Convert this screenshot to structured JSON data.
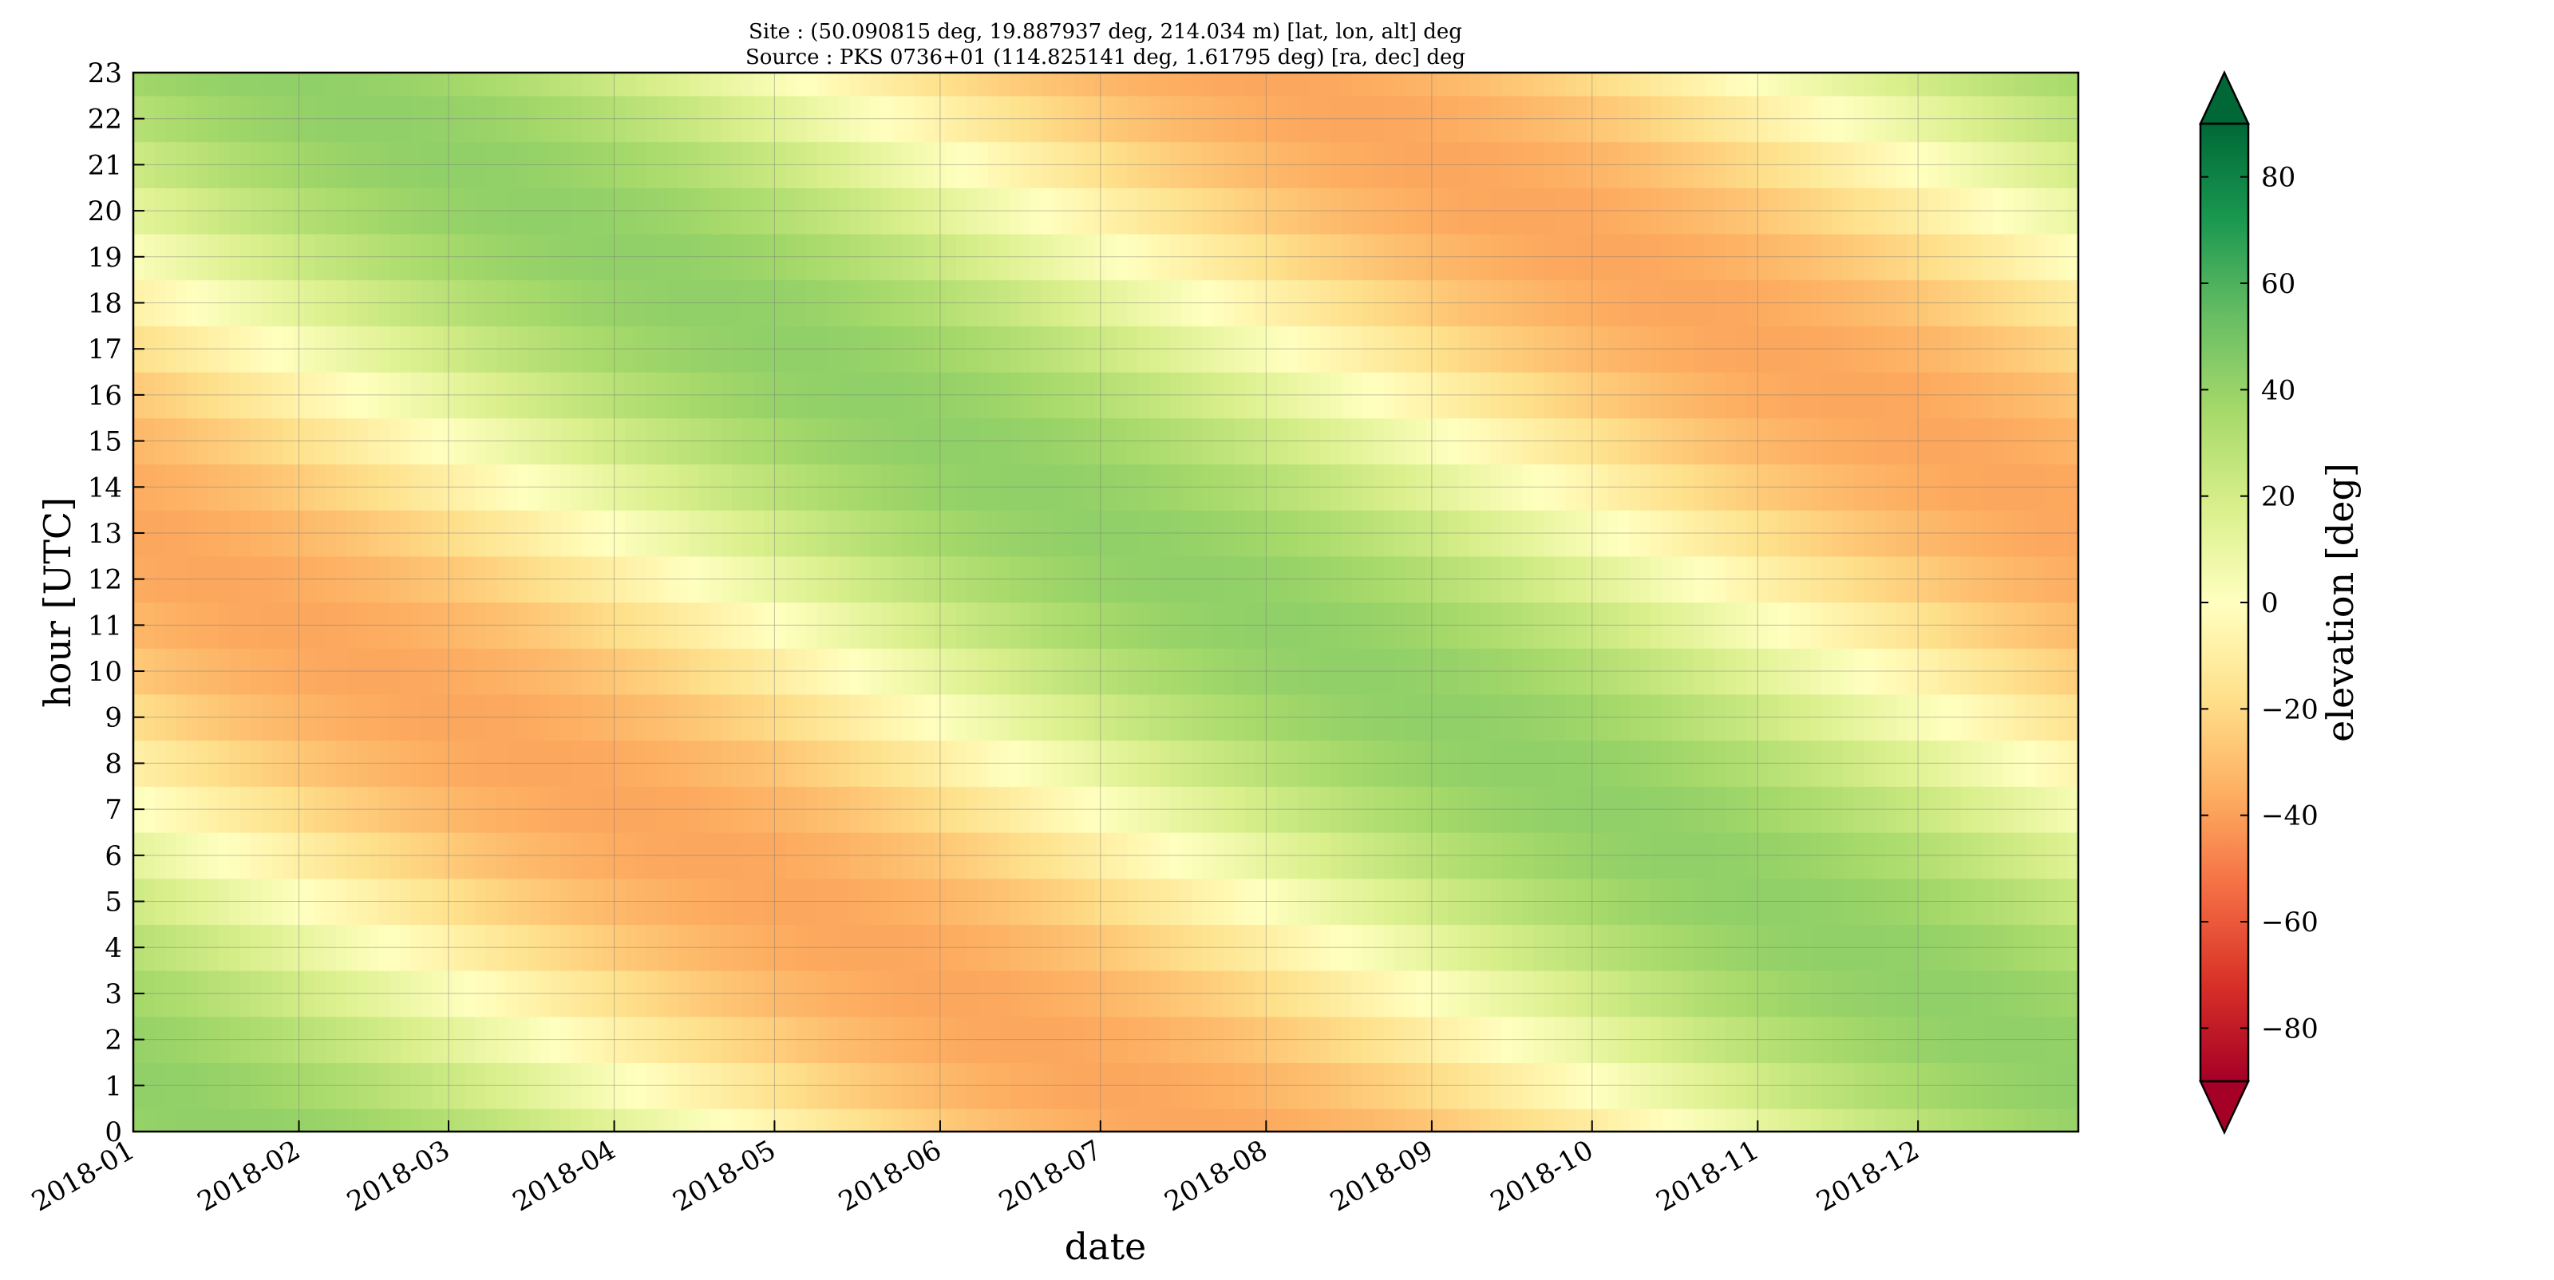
{
  "chart_data": {
    "type": "heatmap",
    "title_line1": "Site : (50.090815 deg, 19.887937 deg, 214.034 m) [lat, lon, alt] deg",
    "title_line2": "Source : PKS 0736+01 (114.825141 deg, 1.61795 deg) [ra, dec] deg",
    "xlabel": "date",
    "ylabel": "hour [UTC]",
    "colorbar_label": "elevation [deg]",
    "colormap": "RdYlGn",
    "colormap_low_color": "#a50026",
    "colormap_high_color": "#006837",
    "x_tick_labels": [
      "2018-01",
      "2018-02",
      "2018-03",
      "2018-04",
      "2018-05",
      "2018-06",
      "2018-07",
      "2018-08",
      "2018-09",
      "2018-10",
      "2018-11",
      "2018-12"
    ],
    "x_range": [
      "2018-01-01",
      "2018-12-31"
    ],
    "y_ticks": [
      0,
      1,
      2,
      3,
      4,
      5,
      6,
      7,
      8,
      9,
      10,
      11,
      12,
      13,
      14,
      15,
      16,
      17,
      18,
      19,
      20,
      21,
      22,
      23
    ],
    "y_range": [
      0,
      23
    ],
    "colorbar_ticks": [
      80,
      60,
      40,
      20,
      0,
      -20,
      -40,
      -60,
      -80
    ],
    "colorbar_range": [
      -90,
      90
    ],
    "colorbar_extend": "both",
    "grid": true,
    "hour_values": [
      0,
      1,
      2,
      3,
      4,
      5,
      6,
      7,
      8,
      9,
      10,
      11,
      12,
      13,
      14,
      15,
      16,
      17,
      18,
      19,
      20,
      21,
      22,
      23
    ],
    "elevation_maximum_hour_utc": {
      "dates": [
        "2018-01-01",
        "2018-02-01",
        "2018-03-01",
        "2018-04-01",
        "2018-05-01",
        "2018-06-01",
        "2018-07-01",
        "2018-08-01",
        "2018-09-01",
        "2018-10-01",
        "2018-11-01",
        "2018-12-01",
        "2018-12-31"
      ],
      "hour": [
        1.0,
        22.9,
        21.1,
        19.1,
        17.2,
        15.1,
        13.1,
        11.1,
        9.1,
        7.2,
        5.1,
        3.2,
        1.2
      ]
    },
    "elevation_maximum_deg": 42,
    "elevation_minimum_deg": -38
  }
}
